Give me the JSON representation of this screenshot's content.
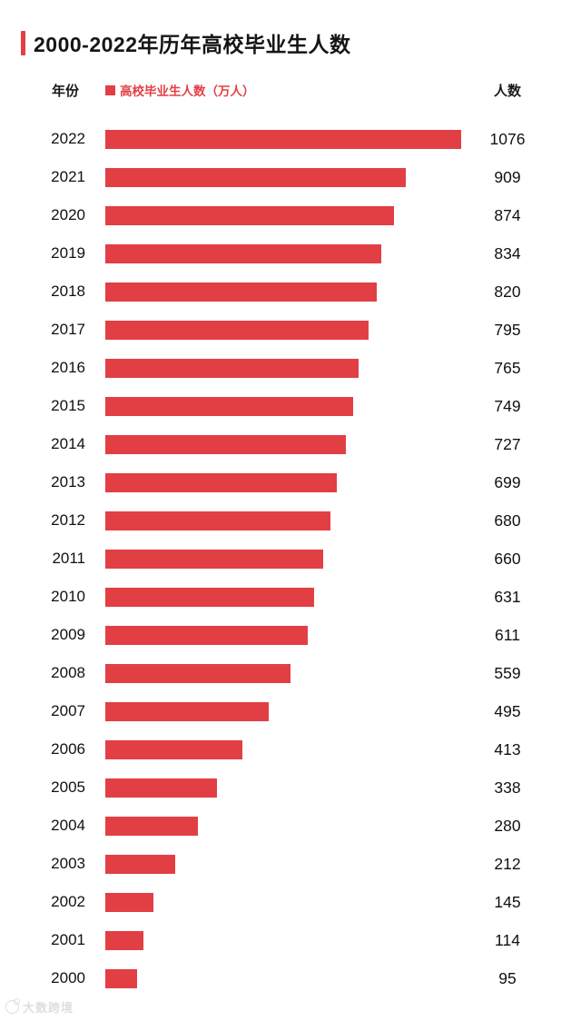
{
  "page": {
    "title": "2000-2022年历年高校毕业生人数",
    "accent_color": "#e23f44",
    "background_color": "#ffffff"
  },
  "header": {
    "year_label": "年份",
    "legend_label": "高校毕业生人数（万人）",
    "value_label": "人数"
  },
  "chart_data": {
    "type": "bar",
    "orientation": "horizontal",
    "title": "2000-2022年历年高校毕业生人数",
    "legend": "高校毕业生人数（万人）",
    "xlabel": "人数",
    "ylabel": "年份",
    "xlim": [
      0,
      1076
    ],
    "grid": false,
    "bar_color": "#e23f44",
    "categories": [
      "2022",
      "2021",
      "2020",
      "2019",
      "2018",
      "2017",
      "2016",
      "2015",
      "2014",
      "2013",
      "2012",
      "2011",
      "2010",
      "2009",
      "2008",
      "2007",
      "2006",
      "2005",
      "2004",
      "2003",
      "2002",
      "2001",
      "2000"
    ],
    "values": [
      1076,
      909,
      874,
      834,
      820,
      795,
      765,
      749,
      727,
      699,
      680,
      660,
      631,
      611,
      559,
      495,
      413,
      338,
      280,
      212,
      145,
      114,
      95
    ]
  },
  "watermark": {
    "text": "大数跨境"
  }
}
